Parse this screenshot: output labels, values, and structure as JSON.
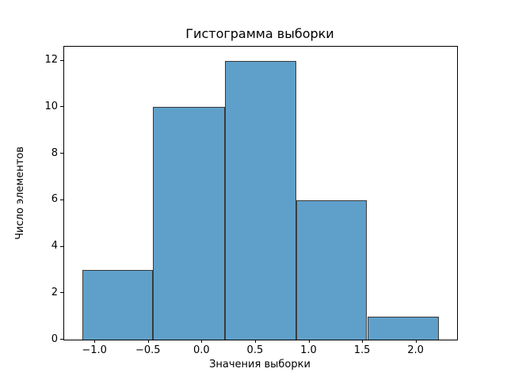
{
  "title": "Гистограмма выборки",
  "chart_data": {
    "type": "bar",
    "subtype": "histogram",
    "title": "Гистограмма выборки",
    "xlabel": "Значения выборки",
    "ylabel": "Число элементов",
    "bin_edges": [
      -1.12,
      -0.46,
      0.21,
      0.88,
      1.54,
      2.21
    ],
    "counts": [
      3,
      10,
      12,
      6,
      1
    ],
    "total_samples": 32,
    "xlim": [
      -1.29,
      2.38
    ],
    "ylim": [
      0,
      12.6
    ],
    "xticks": {
      "values": [
        -1.0,
        -0.5,
        0.0,
        0.5,
        1.0,
        1.5,
        2.0
      ],
      "labels": [
        "−1.0",
        "−0.5",
        "0.0",
        "0.5",
        "1.0",
        "1.5",
        "2.0"
      ]
    },
    "yticks": {
      "values": [
        0,
        2,
        4,
        6,
        8,
        10,
        12
      ],
      "labels": [
        "0",
        "2",
        "4",
        "6",
        "8",
        "10",
        "12"
      ]
    },
    "grid": false,
    "legend": null,
    "bar_color": "#5fa0ca",
    "bar_edge_color": "#3a3a3a",
    "spine_color": "#000000",
    "text_color": "#000000",
    "background_color": "#ffffff"
  }
}
